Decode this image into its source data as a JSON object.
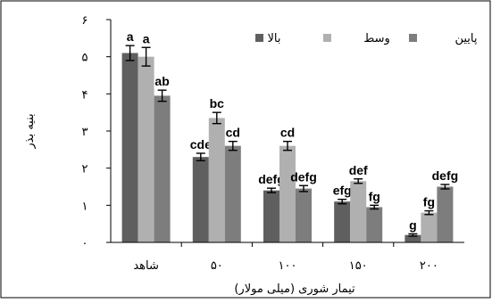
{
  "chart_data": {
    "type": "bar",
    "title": "",
    "xlabel": "تیمار شوری (میلی مولار)",
    "ylabel": "بنیه بذر",
    "ylim": [
      0,
      6
    ],
    "y_ticks": [
      "۰",
      "۱",
      "۲",
      "۳",
      "۴",
      "۵",
      "۶"
    ],
    "grid": false,
    "legend_position": "top-right",
    "categories": [
      "شاهد",
      "۵۰",
      "۱۰۰",
      "۱۵۰",
      "۲۰۰"
    ],
    "series": [
      {
        "name": "بالا",
        "color": "#5f5f5f",
        "values": [
          5.1,
          2.3,
          1.4,
          1.1,
          0.2
        ],
        "errors": [
          0.2,
          0.1,
          0.06,
          0.06,
          0.03
        ],
        "labels": [
          "a",
          "cde",
          "defg",
          "efg",
          "g"
        ]
      },
      {
        "name": "وسط",
        "color": "#b0b0b0",
        "values": [
          5.0,
          3.35,
          2.6,
          1.65,
          0.8
        ],
        "errors": [
          0.25,
          0.15,
          0.12,
          0.06,
          0.05
        ],
        "labels": [
          "a",
          "bc",
          "cd",
          "def",
          "fg"
        ]
      },
      {
        "name": "پایین",
        "color": "#7d7d7d",
        "values": [
          3.95,
          2.6,
          1.45,
          0.95,
          1.5
        ],
        "errors": [
          0.15,
          0.12,
          0.08,
          0.05,
          0.06
        ],
        "labels": [
          "ab",
          "cd",
          "defg",
          "fg",
          "defg"
        ]
      }
    ]
  }
}
